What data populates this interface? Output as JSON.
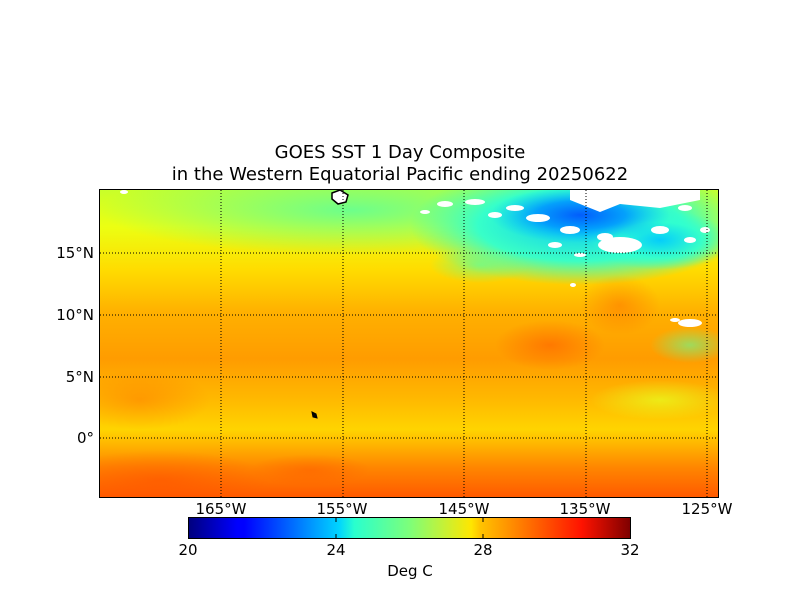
{
  "title": {
    "line1": "GOES SST 1 Day Composite",
    "line2": "in the Western Equatorial Pacific ending 20250622"
  },
  "map": {
    "lat_labels": [
      "15°N",
      "10°N",
      "5°N",
      "0°"
    ],
    "lon_labels": [
      "165°W",
      "155°W",
      "145°W",
      "135°W",
      "125°W"
    ],
    "gridline_style": "dotted",
    "land_color": "#ffffff",
    "no_data_color": "#ffffff"
  },
  "colorbar": {
    "ticks": [
      "20",
      "24",
      "28",
      "32"
    ],
    "label": "Deg C",
    "colormap": "jet",
    "range": [
      20,
      32
    ]
  }
}
